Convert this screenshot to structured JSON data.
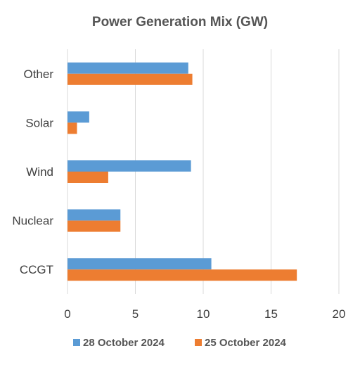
{
  "chart_data": {
    "type": "bar",
    "orientation": "horizontal",
    "title": "Power Generation Mix (GW)",
    "xlabel": "",
    "ylabel": "",
    "xlim": [
      0,
      20
    ],
    "x_ticks": [
      0,
      5,
      10,
      15,
      20
    ],
    "grid": "vertical",
    "legend_position": "bottom",
    "categories": [
      "CCGT",
      "Nuclear",
      "Wind",
      "Solar",
      "Other"
    ],
    "series": [
      {
        "name": "28 October 2024",
        "color": "#5B9BD5",
        "values": [
          10.6,
          3.9,
          9.1,
          1.6,
          8.9
        ]
      },
      {
        "name": "25 October 2024",
        "color": "#ED7D31",
        "values": [
          16.9,
          3.9,
          3.0,
          0.7,
          9.2
        ]
      }
    ]
  }
}
